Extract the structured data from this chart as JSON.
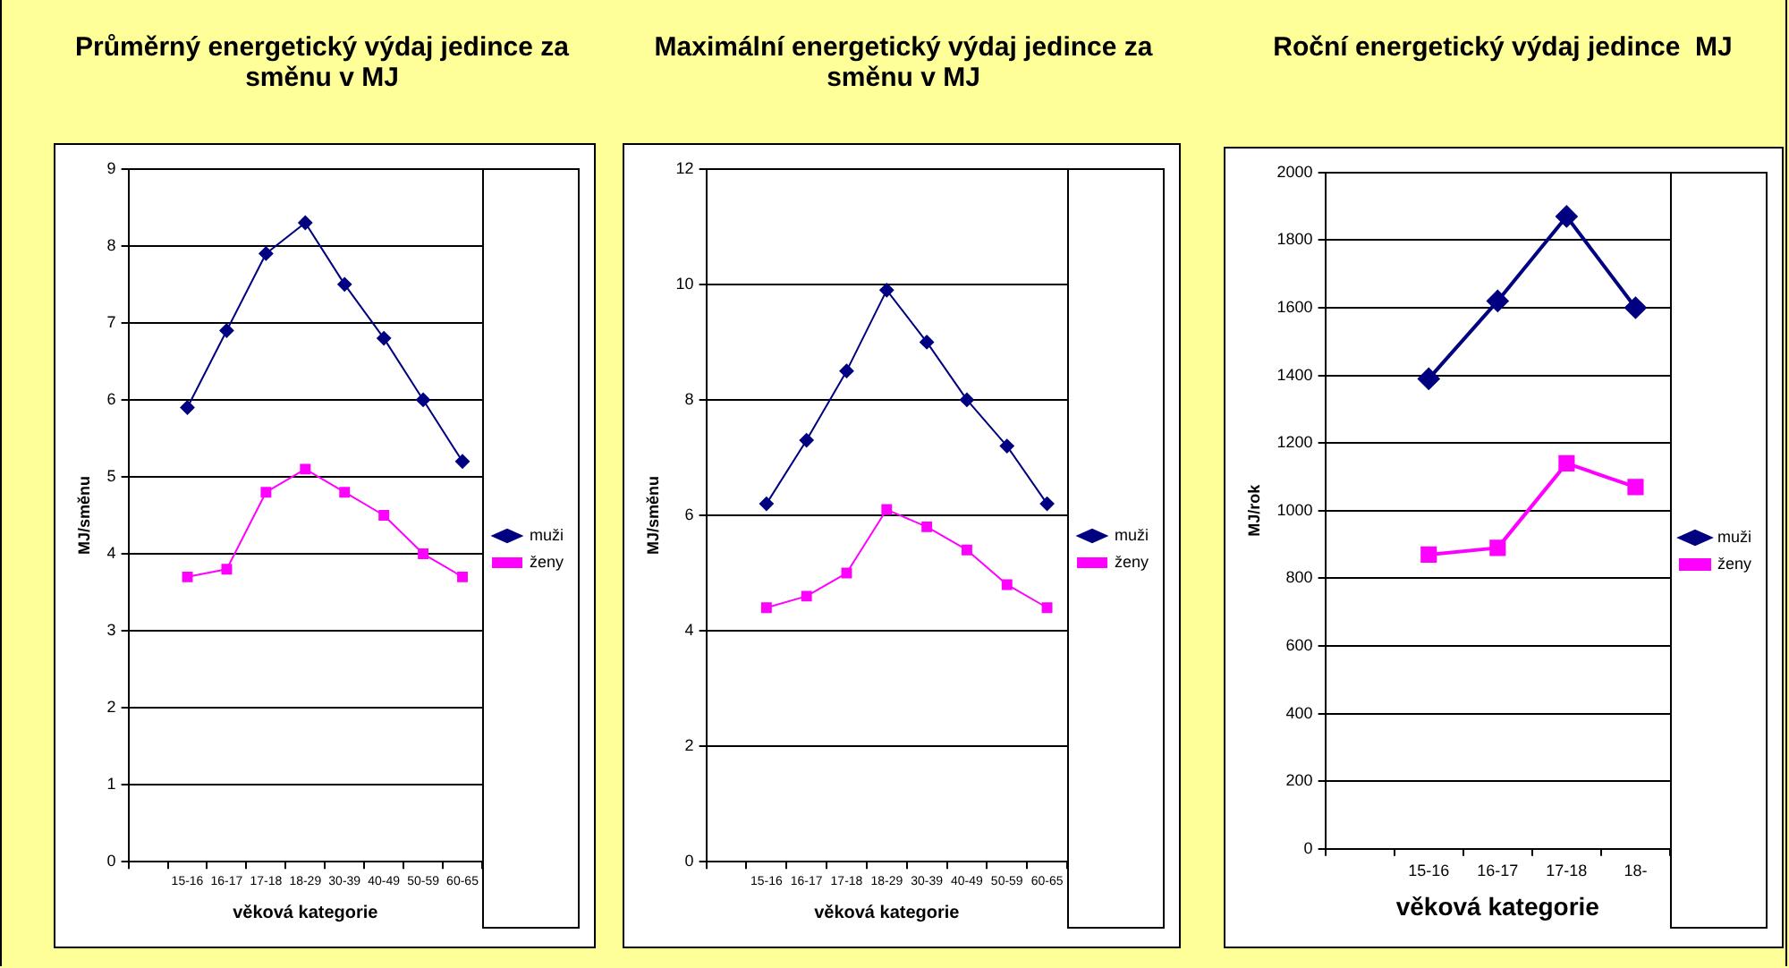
{
  "chart_data": [
    {
      "type": "line",
      "title": "Průměrný energetický výdaj jedince za směnu v MJ",
      "xlabel": "věková kategorie",
      "ylabel": "MJ/směnu",
      "categories": [
        null,
        "15-16",
        "16-17",
        "17-18",
        "18-29",
        "30-39",
        "40-49",
        "50-59",
        "60-65"
      ],
      "series": [
        {
          "name": "muži",
          "color": "#000080",
          "marker": "diamond",
          "values": [
            null,
            5.9,
            6.9,
            7.9,
            8.3,
            7.5,
            6.8,
            6.0,
            5.2
          ]
        },
        {
          "name": "ženy",
          "color": "#ff00ff",
          "marker": "square",
          "values": [
            null,
            3.7,
            3.8,
            4.8,
            5.1,
            4.8,
            4.5,
            4.0,
            3.7
          ]
        }
      ],
      "ylim": [
        0,
        9
      ],
      "yticks": [
        0,
        1,
        2,
        3,
        4,
        5,
        6,
        7,
        8,
        9
      ],
      "grid": "y",
      "legend": "right",
      "line_style": "solid"
    },
    {
      "type": "line",
      "title": "Maximální energetický výdaj jedince za směnu v MJ",
      "xlabel": "věková kategorie",
      "ylabel": "MJ/směnu",
      "categories": [
        null,
        "15-16",
        "16-17",
        "17-18",
        "18-29",
        "30-39",
        "40-49",
        "50-59",
        "60-65"
      ],
      "series": [
        {
          "name": "muži",
          "color": "#000080",
          "marker": "diamond",
          "values": [
            null,
            6.2,
            7.3,
            8.5,
            9.9,
            9.0,
            8.0,
            7.2,
            6.2
          ]
        },
        {
          "name": "ženy",
          "color": "#ff00ff",
          "marker": "square",
          "values": [
            null,
            4.4,
            4.6,
            5.0,
            6.1,
            5.8,
            5.4,
            4.8,
            4.4
          ]
        }
      ],
      "ylim": [
        0,
        12
      ],
      "yticks": [
        0,
        2,
        4,
        6,
        8,
        10,
        12
      ],
      "grid": "y",
      "legend": "right",
      "line_style": "solid"
    },
    {
      "type": "line",
      "title": "Roční energetický výdaj jedince  MJ",
      "xlabel": "věková kategorie",
      "ylabel": "MJ/rok",
      "categories": [
        null,
        "15-16",
        "16-17",
        "17-18",
        "18-"
      ],
      "series": [
        {
          "name": "muži",
          "color": "#000080",
          "marker": "diamond",
          "values": [
            null,
            1390,
            1620,
            1870,
            1600
          ]
        },
        {
          "name": "ženy",
          "color": "#ff00ff",
          "marker": "square",
          "values": [
            null,
            870,
            890,
            1140,
            1070
          ]
        }
      ],
      "ylim": [
        0,
        2000
      ],
      "yticks": [
        0,
        200,
        400,
        600,
        800,
        1000,
        1200,
        1400,
        1600,
        1800,
        2000
      ],
      "grid": "y",
      "legend": "right",
      "line_style": "solid"
    }
  ]
}
